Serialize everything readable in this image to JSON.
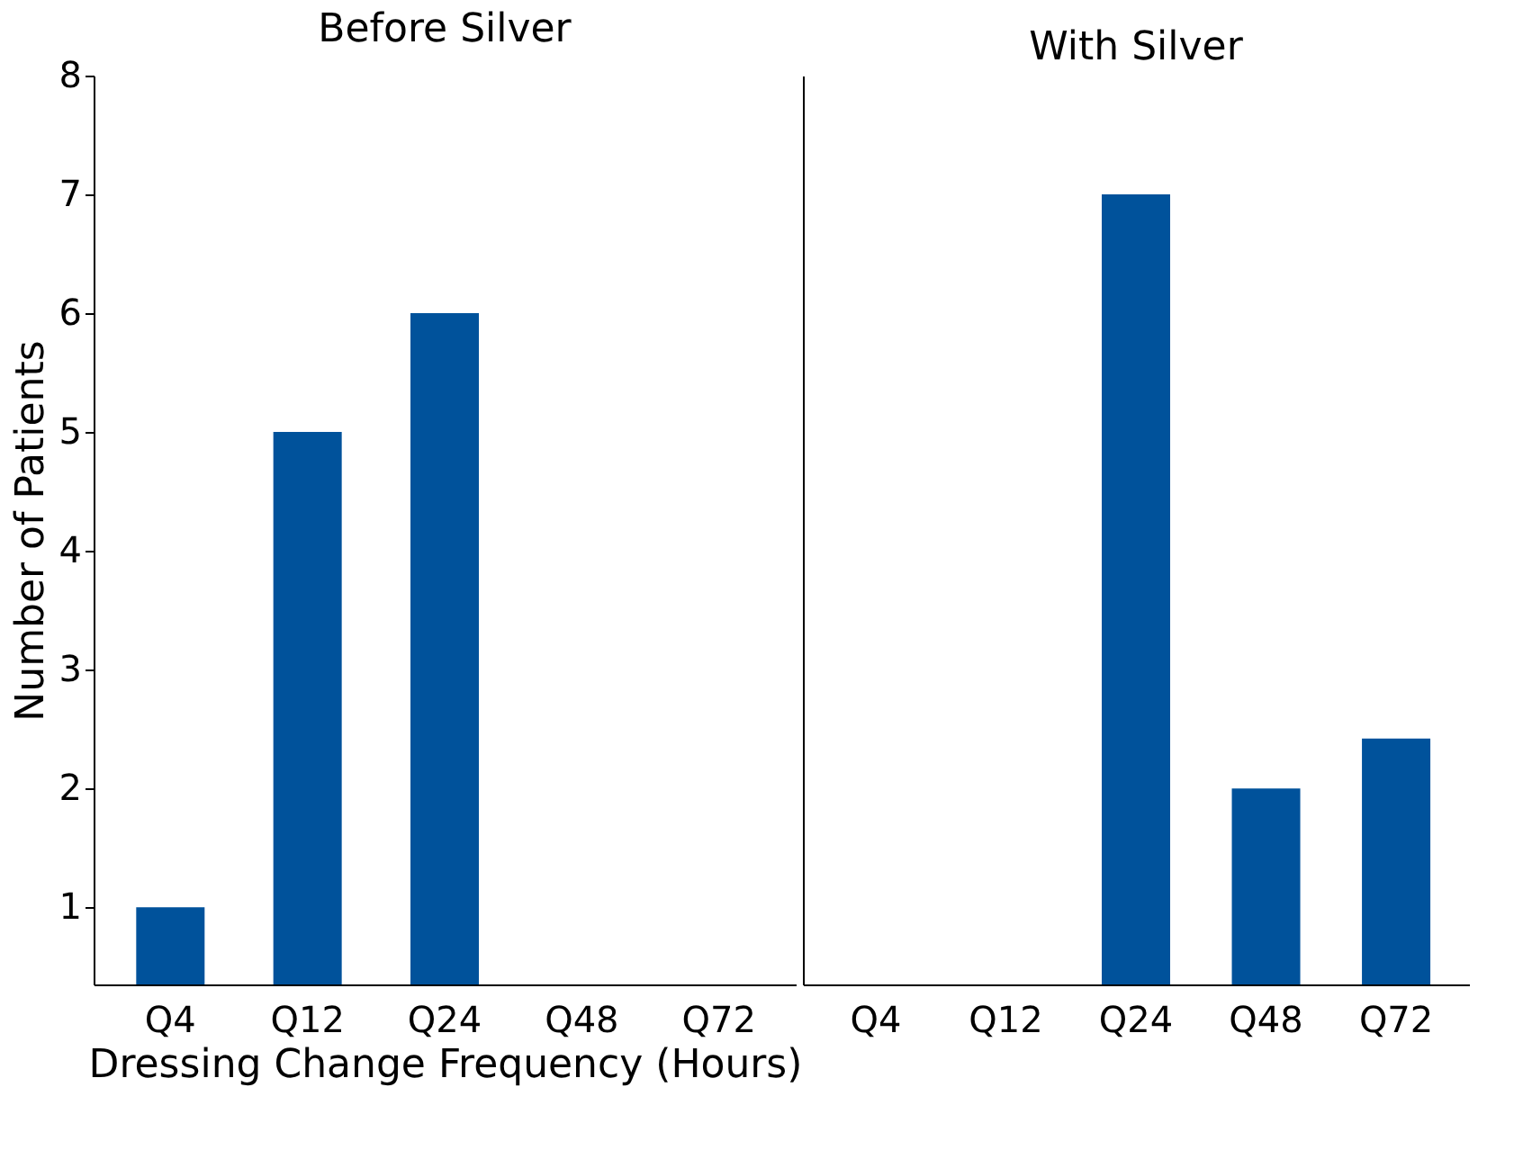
{
  "chart_data": [
    {
      "type": "bar",
      "title": "Before Silver",
      "xlabel": "Dressing Change Frequency (Hours)",
      "ylabel": "Number of Patients",
      "categories": [
        "Q4",
        "Q12",
        "Q24",
        "Q48",
        "Q72"
      ],
      "values": [
        1,
        5,
        6,
        null,
        null
      ],
      "color": "#00529b",
      "ylim": [
        0.35,
        8
      ],
      "yticks": [
        1,
        2,
        3,
        4,
        5,
        6,
        7,
        8
      ]
    },
    {
      "type": "bar",
      "title": "With Silver",
      "categories": [
        "Q4",
        "Q12",
        "Q24",
        "Q48",
        "Q72"
      ],
      "values": [
        null,
        null,
        7,
        2,
        2.42
      ],
      "color": "#00529b",
      "ylim": [
        0.35,
        8
      ],
      "yticks": [
        1,
        2,
        3,
        4,
        5,
        6,
        7,
        8
      ],
      "tick_labels": "x"
    }
  ]
}
